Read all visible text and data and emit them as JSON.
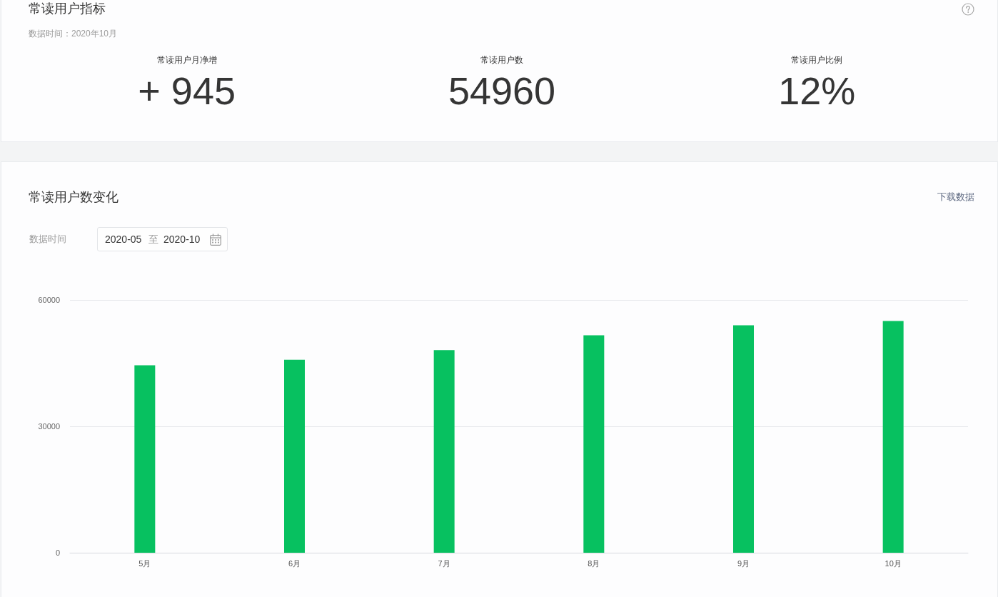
{
  "chart_data": [
    {
      "type": "other",
      "title": "常读用户指标",
      "subtitle": "数据时间：2020年10月",
      "annotations": [
        "常读用户月净增",
        "+ 945",
        "常读用户数",
        "54960",
        "常读用户比例",
        "12%"
      ]
    },
    {
      "type": "bar",
      "title": "常读用户数变化",
      "annotations": [
        "下载数据",
        "数据时间",
        "2020-05",
        "至",
        "2020-10"
      ],
      "categories": [
        "5月",
        "6月",
        "7月",
        "8月",
        "9月",
        "10月"
      ],
      "values": [
        44500,
        45800,
        48100,
        51600,
        54000,
        55000
      ],
      "color": "#07c160",
      "ylim": [
        0,
        60000
      ],
      "yticks": [
        0,
        30000,
        60000
      ],
      "grid": "y"
    }
  ]
}
